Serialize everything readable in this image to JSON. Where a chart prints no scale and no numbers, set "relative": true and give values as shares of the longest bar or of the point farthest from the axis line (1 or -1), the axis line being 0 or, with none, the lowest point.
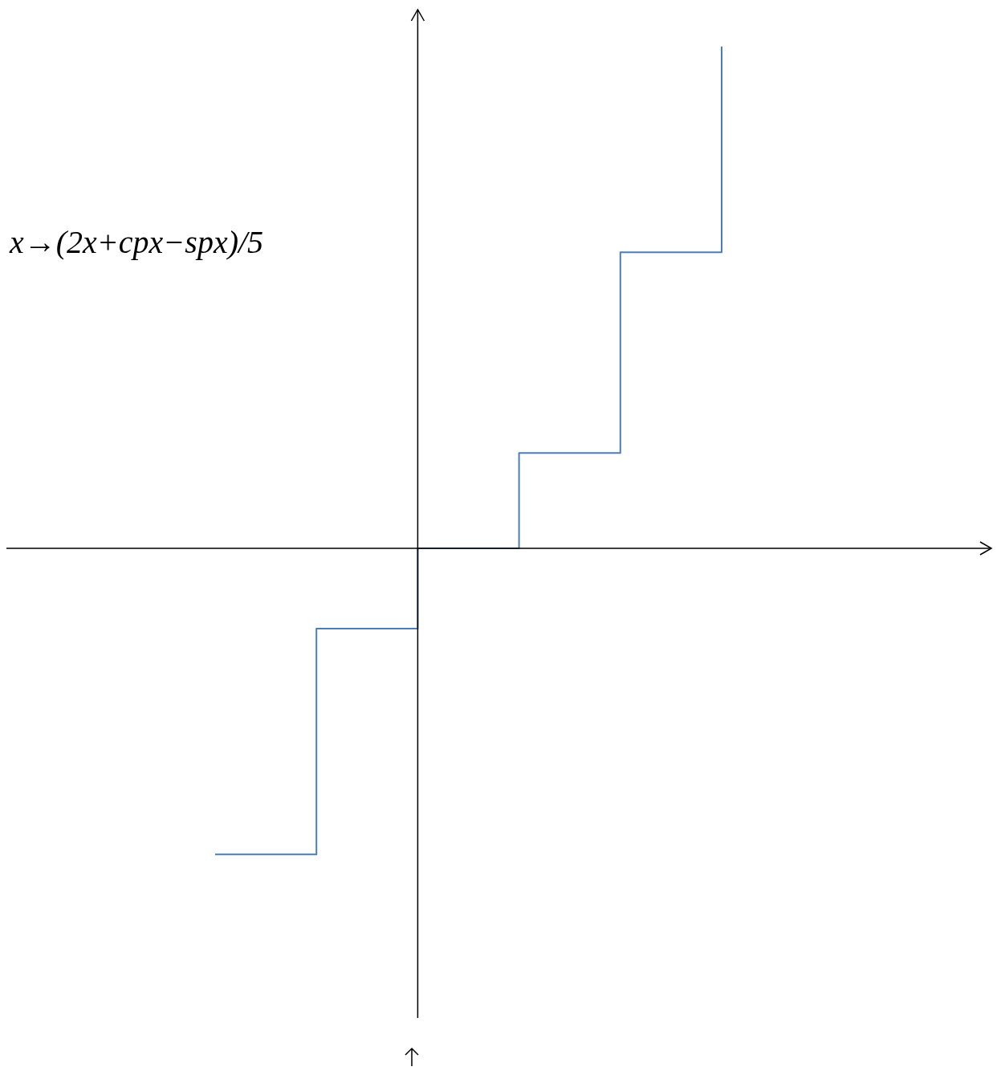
{
  "chart_data": {
    "type": "step",
    "relative": true,
    "categories": [
      null,
      null,
      null,
      null,
      null,
      null
    ],
    "series": [
      {
        "color": "#4a7ebb",
        "values": [
          -0.61,
          -0.16,
          0,
          0.19,
          0.59,
          1
        ]
      }
    ],
    "annotations": [
      "x→(2x+cpx−spx)/5"
    ],
    "legend": false
  }
}
